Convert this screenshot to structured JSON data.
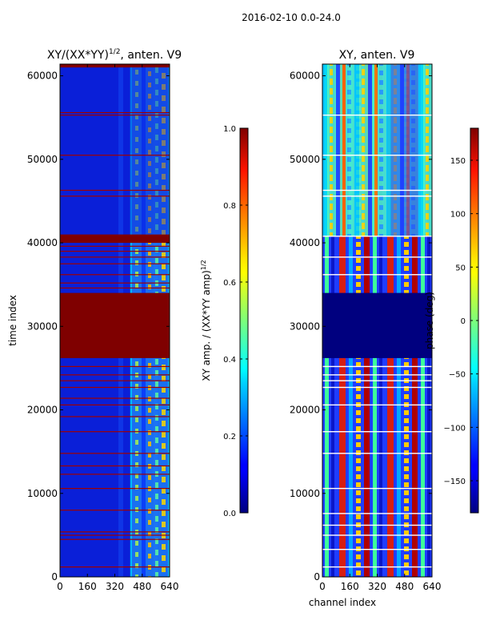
{
  "figure": {
    "suptitle": "2016-02-10 0.0-24.0"
  },
  "chart_data": [
    {
      "type": "heatmap",
      "title": "XY/(XX*YY)",
      "title_exponent": "1/2",
      "title_suffix": ", anten. V9",
      "xlabel": "",
      "ylabel": "time index",
      "xlim": [
        0,
        640
      ],
      "ylim": [
        0,
        61400
      ],
      "xticks": [
        0,
        160,
        320,
        480,
        640
      ],
      "yticks": [
        0,
        10000,
        20000,
        30000,
        40000,
        50000,
        60000
      ],
      "colorbar": {
        "label": "XY amp. / (XX*YY amp)",
        "label_exponent": "1/2",
        "range": [
          0.0,
          1.0
        ],
        "ticks": [
          "0.0",
          "0.2",
          "0.4",
          "0.6",
          "0.8",
          "1.0"
        ]
      },
      "features": {
        "flagged_time_blocks": [
          [
            26200,
            34000
          ],
          [
            40000,
            41000
          ],
          [
            61000,
            61400
          ]
        ],
        "flagged_time_lines": [
          1200,
          4500,
          5000,
          5400,
          8000,
          10600,
          12300,
          13300,
          14800,
          17400,
          19200,
          20600,
          21400,
          22700,
          23500,
          24200,
          25200,
          34600,
          35200,
          36200,
          37500,
          38300,
          39000,
          39600,
          45600,
          46300,
          50500,
          55300,
          55600
        ],
        "high_amplitude_channels": [
          410,
          640
        ]
      }
    },
    {
      "type": "heatmap",
      "title": "XY, anten. V9",
      "xlabel": "channel index",
      "ylabel": "",
      "xlim": [
        0,
        640
      ],
      "ylim": [
        0,
        61400
      ],
      "xticks": [
        0,
        160,
        320,
        480,
        640
      ],
      "yticks": [
        0,
        10000,
        20000,
        30000,
        40000,
        50000,
        60000
      ],
      "colorbar": {
        "label": "phase (deg)",
        "range": [
          -180,
          180
        ],
        "ticks": [
          "−150",
          "−100",
          "−50",
          "0",
          "50",
          "100",
          "150"
        ]
      },
      "features": {
        "flagged_time_block": [
          26200,
          34000
        ],
        "flagged_time_lines": [
          1200,
          3300,
          5000,
          6200,
          7600,
          10600,
          14800,
          17400,
          20600,
          22700,
          23500,
          24200,
          25200,
          36200,
          38300,
          40800,
          45600,
          46300,
          50500,
          55300
        ]
      }
    }
  ]
}
